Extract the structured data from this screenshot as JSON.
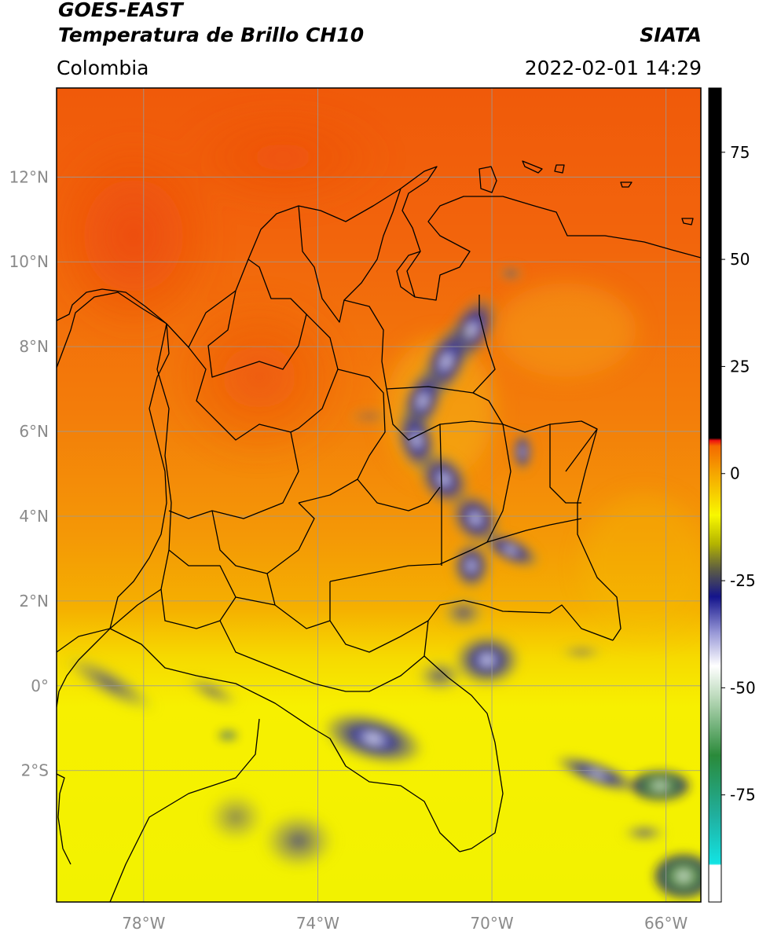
{
  "header": {
    "satellite": "GOES-EAST",
    "product": "Temperatura de Brillo CH10",
    "region": "Colombia",
    "agency": "SIATA",
    "datetime": "2022-02-01 14:29"
  },
  "map": {
    "lon_range": [
      -80,
      -65.2
    ],
    "lat_range": [
      -5.1,
      14.1
    ],
    "lon_ticks": [
      {
        "value": -78,
        "label": "78°W"
      },
      {
        "value": -74,
        "label": "74°W"
      },
      {
        "value": -70,
        "label": "70°W"
      },
      {
        "value": -66,
        "label": "66°W"
      }
    ],
    "lat_ticks": [
      {
        "value": 12,
        "label": "12°N"
      },
      {
        "value": 10,
        "label": "10°N"
      },
      {
        "value": 8,
        "label": "8°N"
      },
      {
        "value": 6,
        "label": "6°N"
      },
      {
        "value": 4,
        "label": "4°N"
      },
      {
        "value": 2,
        "label": "2°N"
      },
      {
        "value": 0,
        "label": "0°"
      },
      {
        "value": -2,
        "label": "2°S"
      }
    ],
    "grid": true,
    "colors": {
      "warm_north": "#f05a0a",
      "mid": "#f5a000",
      "south": "#f6f000",
      "cold_cloud": "#1a1a90",
      "boundary": "#000000",
      "grid": "#9a9a9a"
    }
  },
  "colorbar": {
    "range": [
      -100,
      90
    ],
    "ticks": [
      {
        "value": 75,
        "label": "75"
      },
      {
        "value": 50,
        "label": "50"
      },
      {
        "value": 25,
        "label": "25"
      },
      {
        "value": 0,
        "label": "0"
      },
      {
        "value": -25,
        "label": "-25"
      },
      {
        "value": -50,
        "label": "-50"
      },
      {
        "value": -75,
        "label": "-75"
      }
    ]
  }
}
